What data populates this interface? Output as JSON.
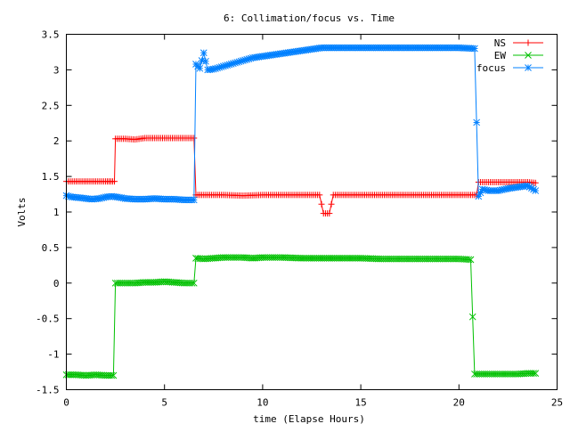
{
  "chart_data": {
    "type": "line",
    "title": "6: Collimation/focus vs. Time",
    "xlabel": "time (Elapse Hours)",
    "ylabel": "Volts",
    "xlim": [
      0,
      25
    ],
    "ylim": [
      -1.5,
      3.5
    ],
    "x_ticks": [
      "0",
      "5",
      "10",
      "15",
      "20",
      "25"
    ],
    "y_ticks": [
      "-1.5",
      "-1",
      "-0.5",
      "0",
      "0.5",
      "1",
      "1.5",
      "2",
      "2.5",
      "3",
      "3.5"
    ],
    "grid": false,
    "legend_position": "top-right",
    "series": [
      {
        "name": "NS",
        "color": "#ff0000",
        "marker": "plus",
        "points": [
          [
            0,
            1.43
          ],
          [
            0.5,
            1.43
          ],
          [
            1,
            1.43
          ],
          [
            1.5,
            1.43
          ],
          [
            2,
            1.43
          ],
          [
            2.45,
            1.43
          ],
          [
            2.5,
            2.03
          ],
          [
            3,
            2.03
          ],
          [
            3.5,
            2.02
          ],
          [
            4,
            2.04
          ],
          [
            4.5,
            2.04
          ],
          [
            5,
            2.04
          ],
          [
            5.5,
            2.04
          ],
          [
            6,
            2.04
          ],
          [
            6.5,
            2.04
          ],
          [
            6.6,
            1.24
          ],
          [
            7,
            1.24
          ],
          [
            8,
            1.24
          ],
          [
            9,
            1.23
          ],
          [
            10,
            1.24
          ],
          [
            11,
            1.24
          ],
          [
            12,
            1.24
          ],
          [
            12.9,
            1.24
          ],
          [
            13.1,
            0.98
          ],
          [
            13.4,
            0.98
          ],
          [
            13.6,
            1.24
          ],
          [
            14,
            1.24
          ],
          [
            15,
            1.24
          ],
          [
            16,
            1.24
          ],
          [
            17,
            1.24
          ],
          [
            18,
            1.24
          ],
          [
            19,
            1.24
          ],
          [
            20,
            1.24
          ],
          [
            20.9,
            1.24
          ],
          [
            21,
            1.42
          ],
          [
            21.5,
            1.42
          ],
          [
            22,
            1.42
          ],
          [
            22.5,
            1.42
          ],
          [
            23,
            1.42
          ],
          [
            23.5,
            1.42
          ],
          [
            23.9,
            1.41
          ]
        ]
      },
      {
        "name": "EW",
        "color": "#00c000",
        "marker": "cross",
        "points": [
          [
            0,
            -1.29
          ],
          [
            0.5,
            -1.29
          ],
          [
            1,
            -1.3
          ],
          [
            1.5,
            -1.29
          ],
          [
            2,
            -1.3
          ],
          [
            2.4,
            -1.3
          ],
          [
            2.5,
            0.0
          ],
          [
            3,
            0.0
          ],
          [
            3.5,
            0.0
          ],
          [
            4,
            0.01
          ],
          [
            4.5,
            0.01
          ],
          [
            5,
            0.02
          ],
          [
            5.5,
            0.01
          ],
          [
            6,
            0.0
          ],
          [
            6.5,
            0.0
          ],
          [
            6.6,
            0.35
          ],
          [
            7,
            0.34
          ],
          [
            7.5,
            0.35
          ],
          [
            8,
            0.36
          ],
          [
            8.5,
            0.36
          ],
          [
            9,
            0.36
          ],
          [
            9.5,
            0.35
          ],
          [
            10,
            0.36
          ],
          [
            10.5,
            0.36
          ],
          [
            11,
            0.36
          ],
          [
            12,
            0.35
          ],
          [
            13,
            0.35
          ],
          [
            14,
            0.35
          ],
          [
            15,
            0.35
          ],
          [
            16,
            0.34
          ],
          [
            17,
            0.34
          ],
          [
            18,
            0.34
          ],
          [
            19,
            0.34
          ],
          [
            20,
            0.34
          ],
          [
            20.6,
            0.33
          ],
          [
            20.8,
            -1.28
          ],
          [
            21.5,
            -1.28
          ],
          [
            22,
            -1.28
          ],
          [
            22.5,
            -1.28
          ],
          [
            23,
            -1.28
          ],
          [
            23.5,
            -1.27
          ],
          [
            23.9,
            -1.27
          ]
        ]
      },
      {
        "name": "focus",
        "color": "#0080ff",
        "marker": "star",
        "points": [
          [
            0,
            1.23
          ],
          [
            0.3,
            1.21
          ],
          [
            0.7,
            1.2
          ],
          [
            1,
            1.19
          ],
          [
            1.3,
            1.18
          ],
          [
            1.7,
            1.19
          ],
          [
            2,
            1.21
          ],
          [
            2.3,
            1.22
          ],
          [
            2.6,
            1.21
          ],
          [
            3,
            1.19
          ],
          [
            3.5,
            1.18
          ],
          [
            4,
            1.18
          ],
          [
            4.5,
            1.19
          ],
          [
            5,
            1.18
          ],
          [
            5.5,
            1.18
          ],
          [
            6,
            1.17
          ],
          [
            6.5,
            1.17
          ],
          [
            6.6,
            3.08
          ],
          [
            6.8,
            3.02
          ],
          [
            7.0,
            3.24
          ],
          [
            7.2,
            3.0
          ],
          [
            7.5,
            3.01
          ],
          [
            8,
            3.05
          ],
          [
            8.5,
            3.09
          ],
          [
            9,
            3.13
          ],
          [
            9.5,
            3.17
          ],
          [
            10,
            3.19
          ],
          [
            10.5,
            3.21
          ],
          [
            11,
            3.23
          ],
          [
            11.5,
            3.25
          ],
          [
            12,
            3.27
          ],
          [
            12.5,
            3.29
          ],
          [
            13,
            3.31
          ],
          [
            13.5,
            3.31
          ],
          [
            14,
            3.31
          ],
          [
            15,
            3.31
          ],
          [
            16,
            3.31
          ],
          [
            17,
            3.31
          ],
          [
            18,
            3.31
          ],
          [
            19,
            3.31
          ],
          [
            20,
            3.31
          ],
          [
            20.8,
            3.3
          ],
          [
            21.0,
            1.22
          ],
          [
            21.2,
            1.32
          ],
          [
            21.5,
            1.3
          ],
          [
            22,
            1.3
          ],
          [
            22.5,
            1.33
          ],
          [
            23,
            1.35
          ],
          [
            23.5,
            1.37
          ],
          [
            23.9,
            1.3
          ]
        ]
      }
    ]
  }
}
